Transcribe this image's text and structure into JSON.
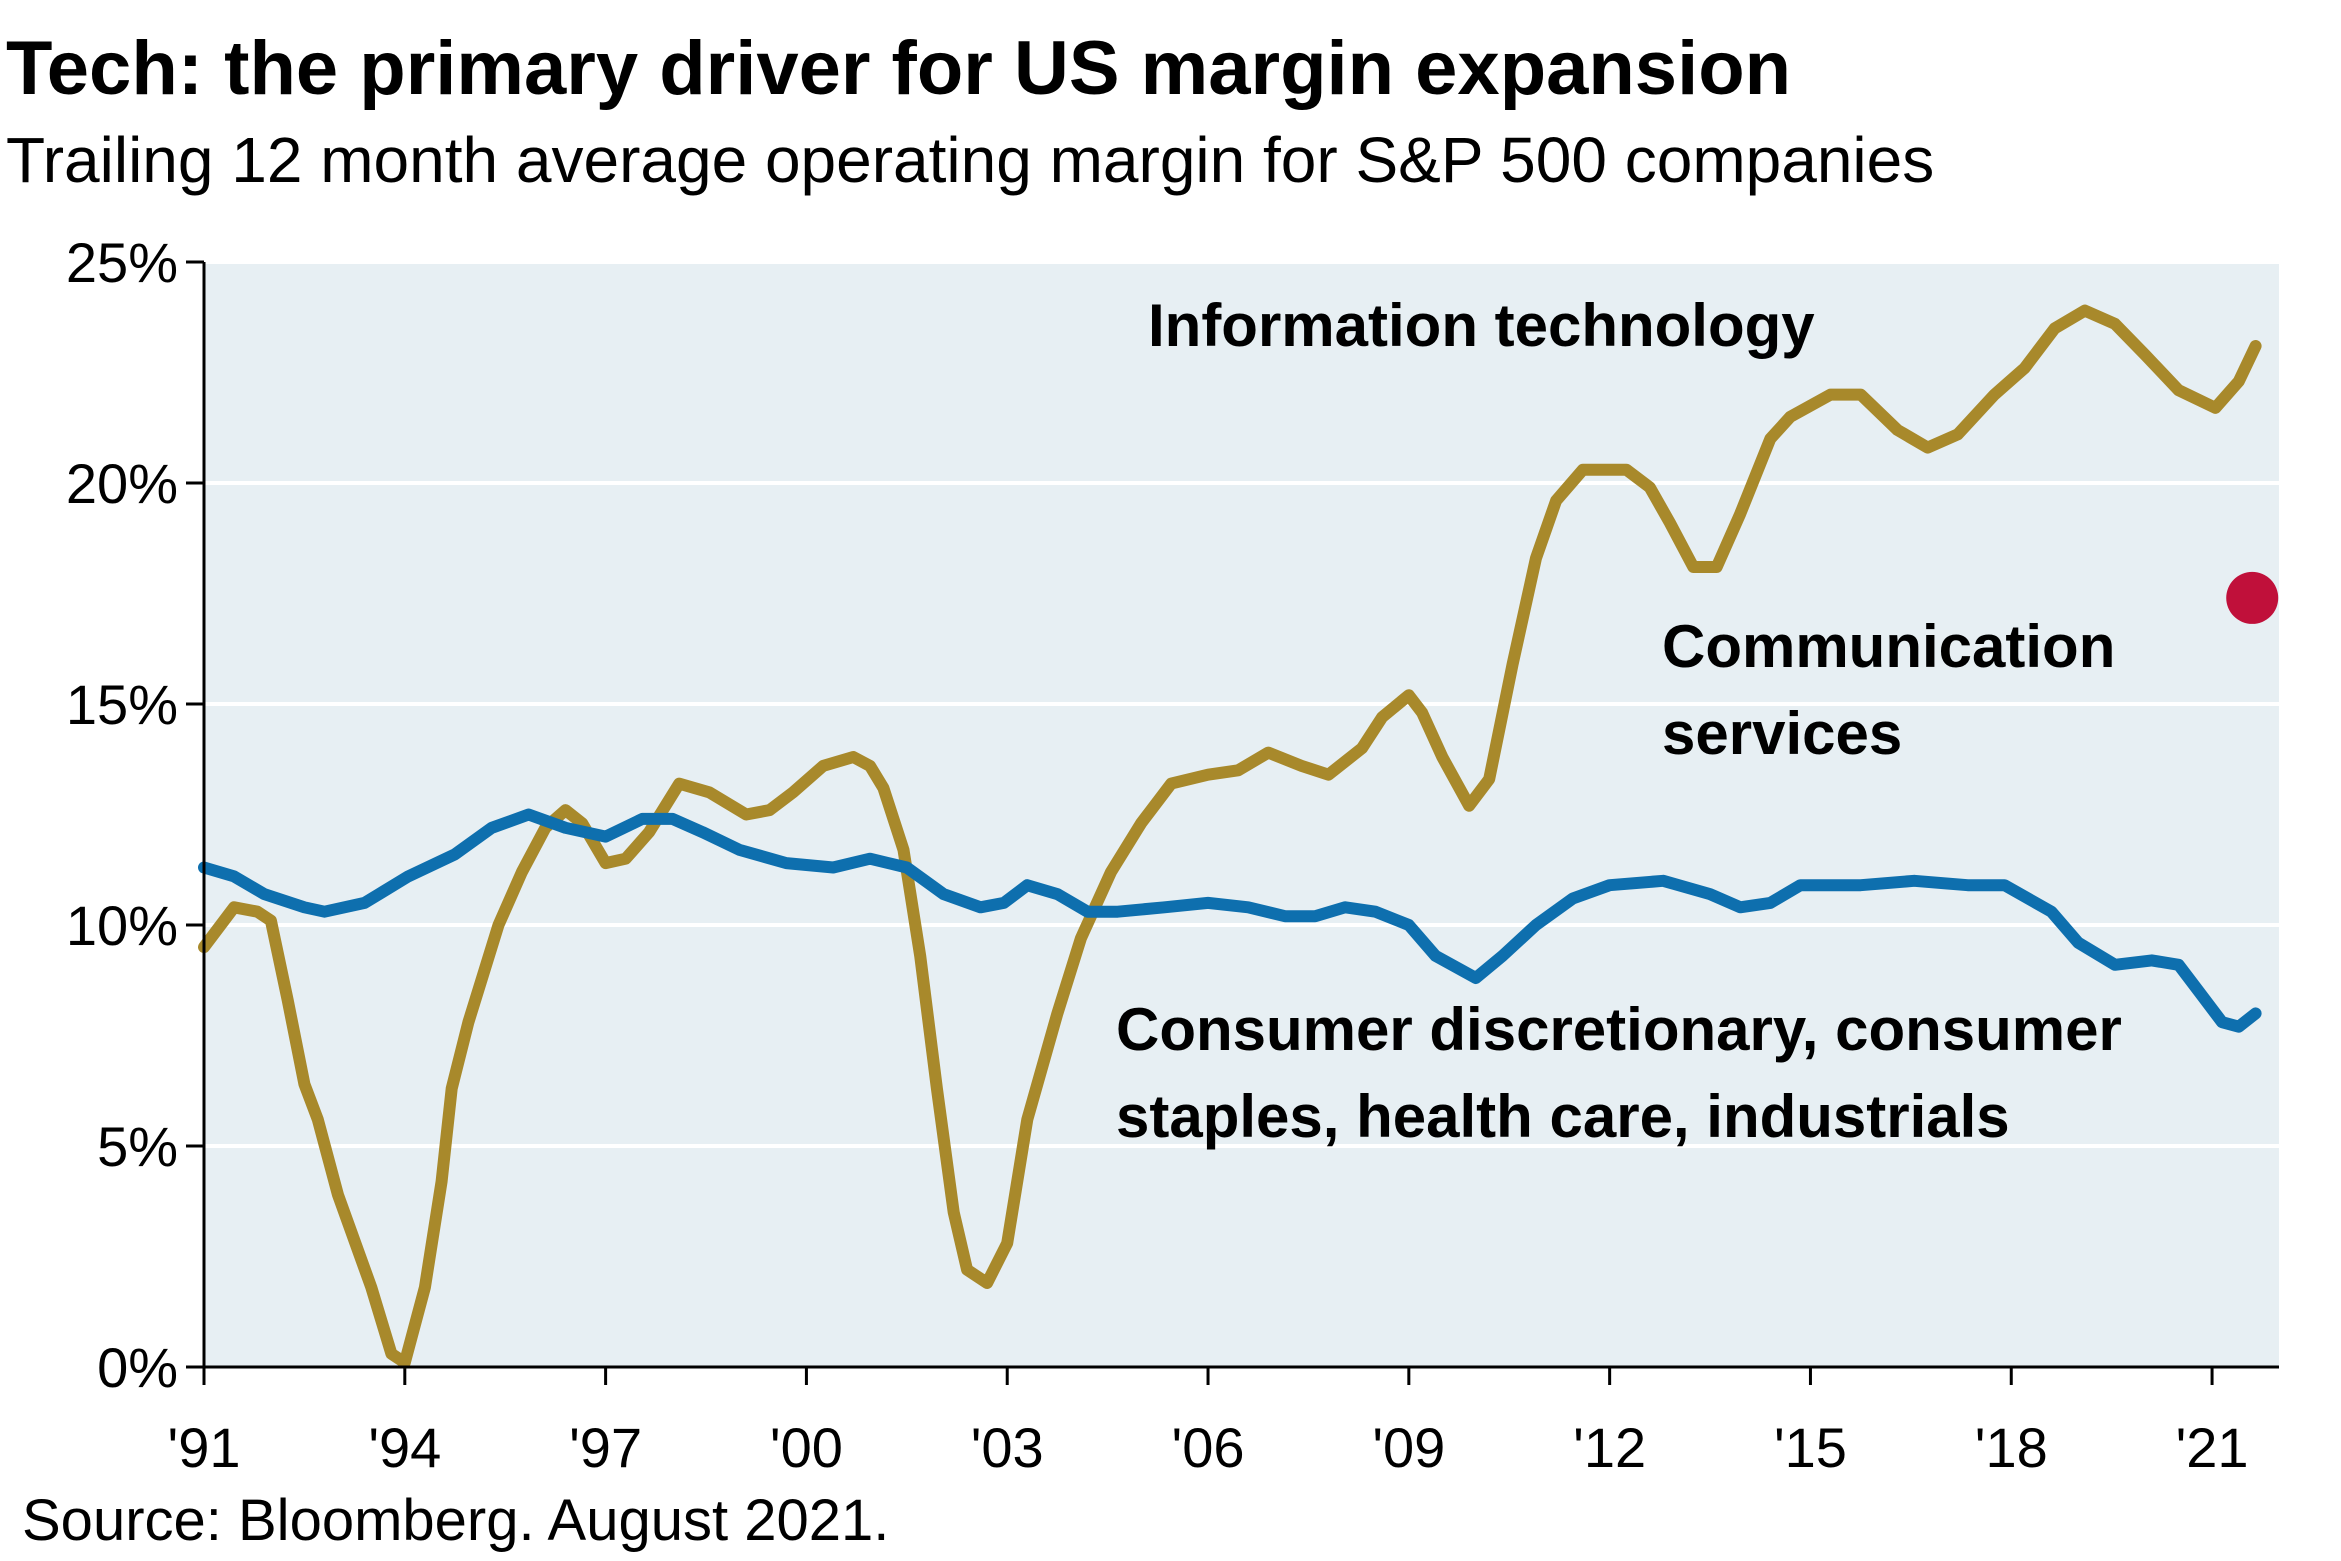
{
  "chart_data": {
    "type": "line",
    "title": "Tech: the primary driver for US margin expansion",
    "subtitle": "Trailing 12 month average operating margin for S&P 500 companies",
    "source": "Source: Bloomberg. August 2021.",
    "xlim": [
      1991,
      2022
    ],
    "xticks": [
      {
        "value": 1991,
        "label": "'91"
      },
      {
        "value": 1994,
        "label": "'94"
      },
      {
        "value": 1997,
        "label": "'97"
      },
      {
        "value": 2000,
        "label": "'00"
      },
      {
        "value": 2003,
        "label": "'03"
      },
      {
        "value": 2006,
        "label": "'06"
      },
      {
        "value": 2009,
        "label": "'09"
      },
      {
        "value": 2012,
        "label": "'12"
      },
      {
        "value": 2015,
        "label": "'15"
      },
      {
        "value": 2018,
        "label": "'18"
      },
      {
        "value": 2021,
        "label": "'21"
      }
    ],
    "ylim": [
      0,
      25
    ],
    "yticks": [
      {
        "value": 0,
        "label": "0%"
      },
      {
        "value": 5,
        "label": "5%"
      },
      {
        "value": 10,
        "label": "10%"
      },
      {
        "value": 15,
        "label": "15%"
      },
      {
        "value": 20,
        "label": "20%"
      },
      {
        "value": 25,
        "label": "25%"
      }
    ],
    "grid": true,
    "series": [
      {
        "name": "Information technology",
        "color": "#a8892b",
        "x": [
          1991.0,
          1991.45,
          1991.8,
          1992.0,
          1992.25,
          1992.5,
          1992.7,
          1993.0,
          1993.5,
          1993.8,
          1994.0,
          1994.3,
          1994.55,
          1994.7,
          1994.95,
          1995.4,
          1995.75,
          1996.1,
          1996.4,
          1996.65,
          1997.0,
          1997.3,
          1997.65,
          1998.1,
          1998.55,
          1999.1,
          1999.45,
          1999.8,
          2000.25,
          2000.7,
          2000.95,
          2001.15,
          2001.45,
          2001.7,
          2001.95,
          2002.2,
          2002.4,
          2002.7,
          2003.0,
          2003.3,
          2003.75,
          2004.1,
          2004.55,
          2005.0,
          2005.45,
          2006.0,
          2006.45,
          2006.9,
          2007.4,
          2007.8,
          2008.3,
          2008.6,
          2009.0,
          2009.2,
          2009.5,
          2009.9,
          2010.2,
          2010.55,
          2010.9,
          2011.2,
          2011.6,
          2012.25,
          2012.6,
          2012.9,
          2013.25,
          2013.6,
          2013.95,
          2014.4,
          2014.7,
          2015.3,
          2015.75,
          2016.3,
          2016.75,
          2017.2,
          2017.75,
          2018.2,
          2018.65,
          2019.1,
          2019.55,
          2020.0,
          2020.5,
          2021.05,
          2021.4,
          2021.65
        ],
        "values": [
          9.5,
          10.4,
          10.3,
          10.1,
          8.3,
          6.4,
          5.6,
          3.9,
          1.8,
          0.3,
          0.1,
          1.8,
          4.2,
          6.3,
          7.8,
          10.0,
          11.2,
          12.2,
          12.6,
          12.3,
          11.4,
          11.5,
          12.1,
          13.2,
          13.0,
          12.5,
          12.6,
          13.0,
          13.6,
          13.8,
          13.6,
          13.1,
          11.7,
          9.3,
          6.3,
          3.5,
          2.2,
          1.9,
          2.8,
          5.6,
          8.0,
          9.7,
          11.2,
          12.3,
          13.2,
          13.4,
          13.5,
          13.9,
          13.6,
          13.4,
          14.0,
          14.7,
          15.2,
          14.8,
          13.8,
          12.7,
          13.3,
          15.9,
          18.3,
          19.6,
          20.3,
          20.3,
          19.9,
          19.1,
          18.1,
          18.1,
          19.3,
          21.0,
          21.5,
          22.0,
          22.0,
          21.2,
          20.8,
          21.1,
          22.0,
          22.6,
          23.5,
          23.9,
          23.6,
          22.9,
          22.1,
          21.7,
          22.3,
          23.1
        ]
      },
      {
        "name": "Communication services",
        "color": "#c0103a",
        "x": [
          2021.6
        ],
        "values": [
          17.4
        ]
      },
      {
        "name": "Consumer discretionary, consumer staples, health care, industrials",
        "color": "#0e6fae",
        "x": [
          1991.0,
          1991.45,
          1991.9,
          1992.5,
          1992.8,
          1993.4,
          1994.05,
          1994.75,
          1995.3,
          1995.85,
          1996.4,
          1997.0,
          1997.55,
          1998.0,
          1998.45,
          1999.0,
          1999.7,
          2000.4,
          2000.95,
          2001.5,
          2002.05,
          2002.6,
          2002.95,
          2003.3,
          2003.75,
          2004.2,
          2004.65,
          2005.35,
          2006.0,
          2006.6,
          2007.15,
          2007.6,
          2008.05,
          2008.5,
          2009.0,
          2009.4,
          2010.0,
          2010.4,
          2010.9,
          2011.45,
          2012.0,
          2012.8,
          2013.5,
          2013.95,
          2014.4,
          2014.85,
          2015.75,
          2016.55,
          2017.35,
          2017.9,
          2018.6,
          2019.0,
          2019.55,
          2020.1,
          2020.5,
          2020.8,
          2021.15,
          2021.4,
          2021.65
        ],
        "values": [
          11.3,
          11.1,
          10.7,
          10.4,
          10.3,
          10.5,
          11.1,
          11.6,
          12.2,
          12.5,
          12.2,
          12.0,
          12.4,
          12.4,
          12.1,
          11.7,
          11.4,
          11.3,
          11.5,
          11.3,
          10.7,
          10.4,
          10.5,
          10.9,
          10.7,
          10.3,
          10.3,
          10.4,
          10.5,
          10.4,
          10.2,
          10.2,
          10.4,
          10.3,
          10.0,
          9.3,
          8.8,
          9.3,
          10.0,
          10.6,
          10.9,
          11.0,
          10.7,
          10.4,
          10.5,
          10.9,
          10.9,
          11.0,
          10.9,
          10.9,
          10.3,
          9.6,
          9.1,
          9.2,
          9.1,
          8.5,
          7.8,
          7.7,
          8.0
        ]
      }
    ]
  }
}
